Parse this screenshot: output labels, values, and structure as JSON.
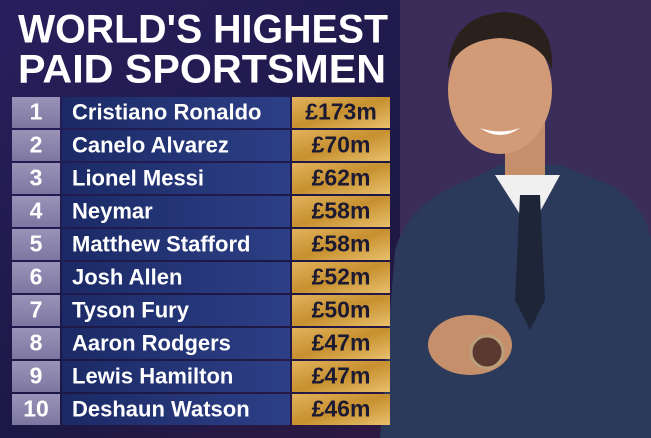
{
  "header": {
    "title_lines": [
      "WORLD'S HIGHEST",
      "PAID SPORTSMEN"
    ]
  },
  "table": {
    "rows": [
      [
        "1",
        "Cristiano Ronaldo",
        "£173m"
      ],
      [
        "2",
        "Canelo Alvarez",
        "£70m"
      ],
      [
        "3",
        "Lionel Messi",
        "£62m"
      ],
      [
        "4",
        "Neymar",
        "£58m"
      ],
      [
        "5",
        "Matthew Stafford",
        "£58m"
      ],
      [
        "6",
        "Josh Allen",
        "£52m"
      ],
      [
        "7",
        "Tyson Fury",
        "£50m"
      ],
      [
        "8",
        "Aaron Rodgers",
        "£47m"
      ],
      [
        "9",
        "Lewis Hamilton",
        "£47m"
      ],
      [
        "10",
        "Deshaun Watson",
        "£46m"
      ]
    ]
  }
}
